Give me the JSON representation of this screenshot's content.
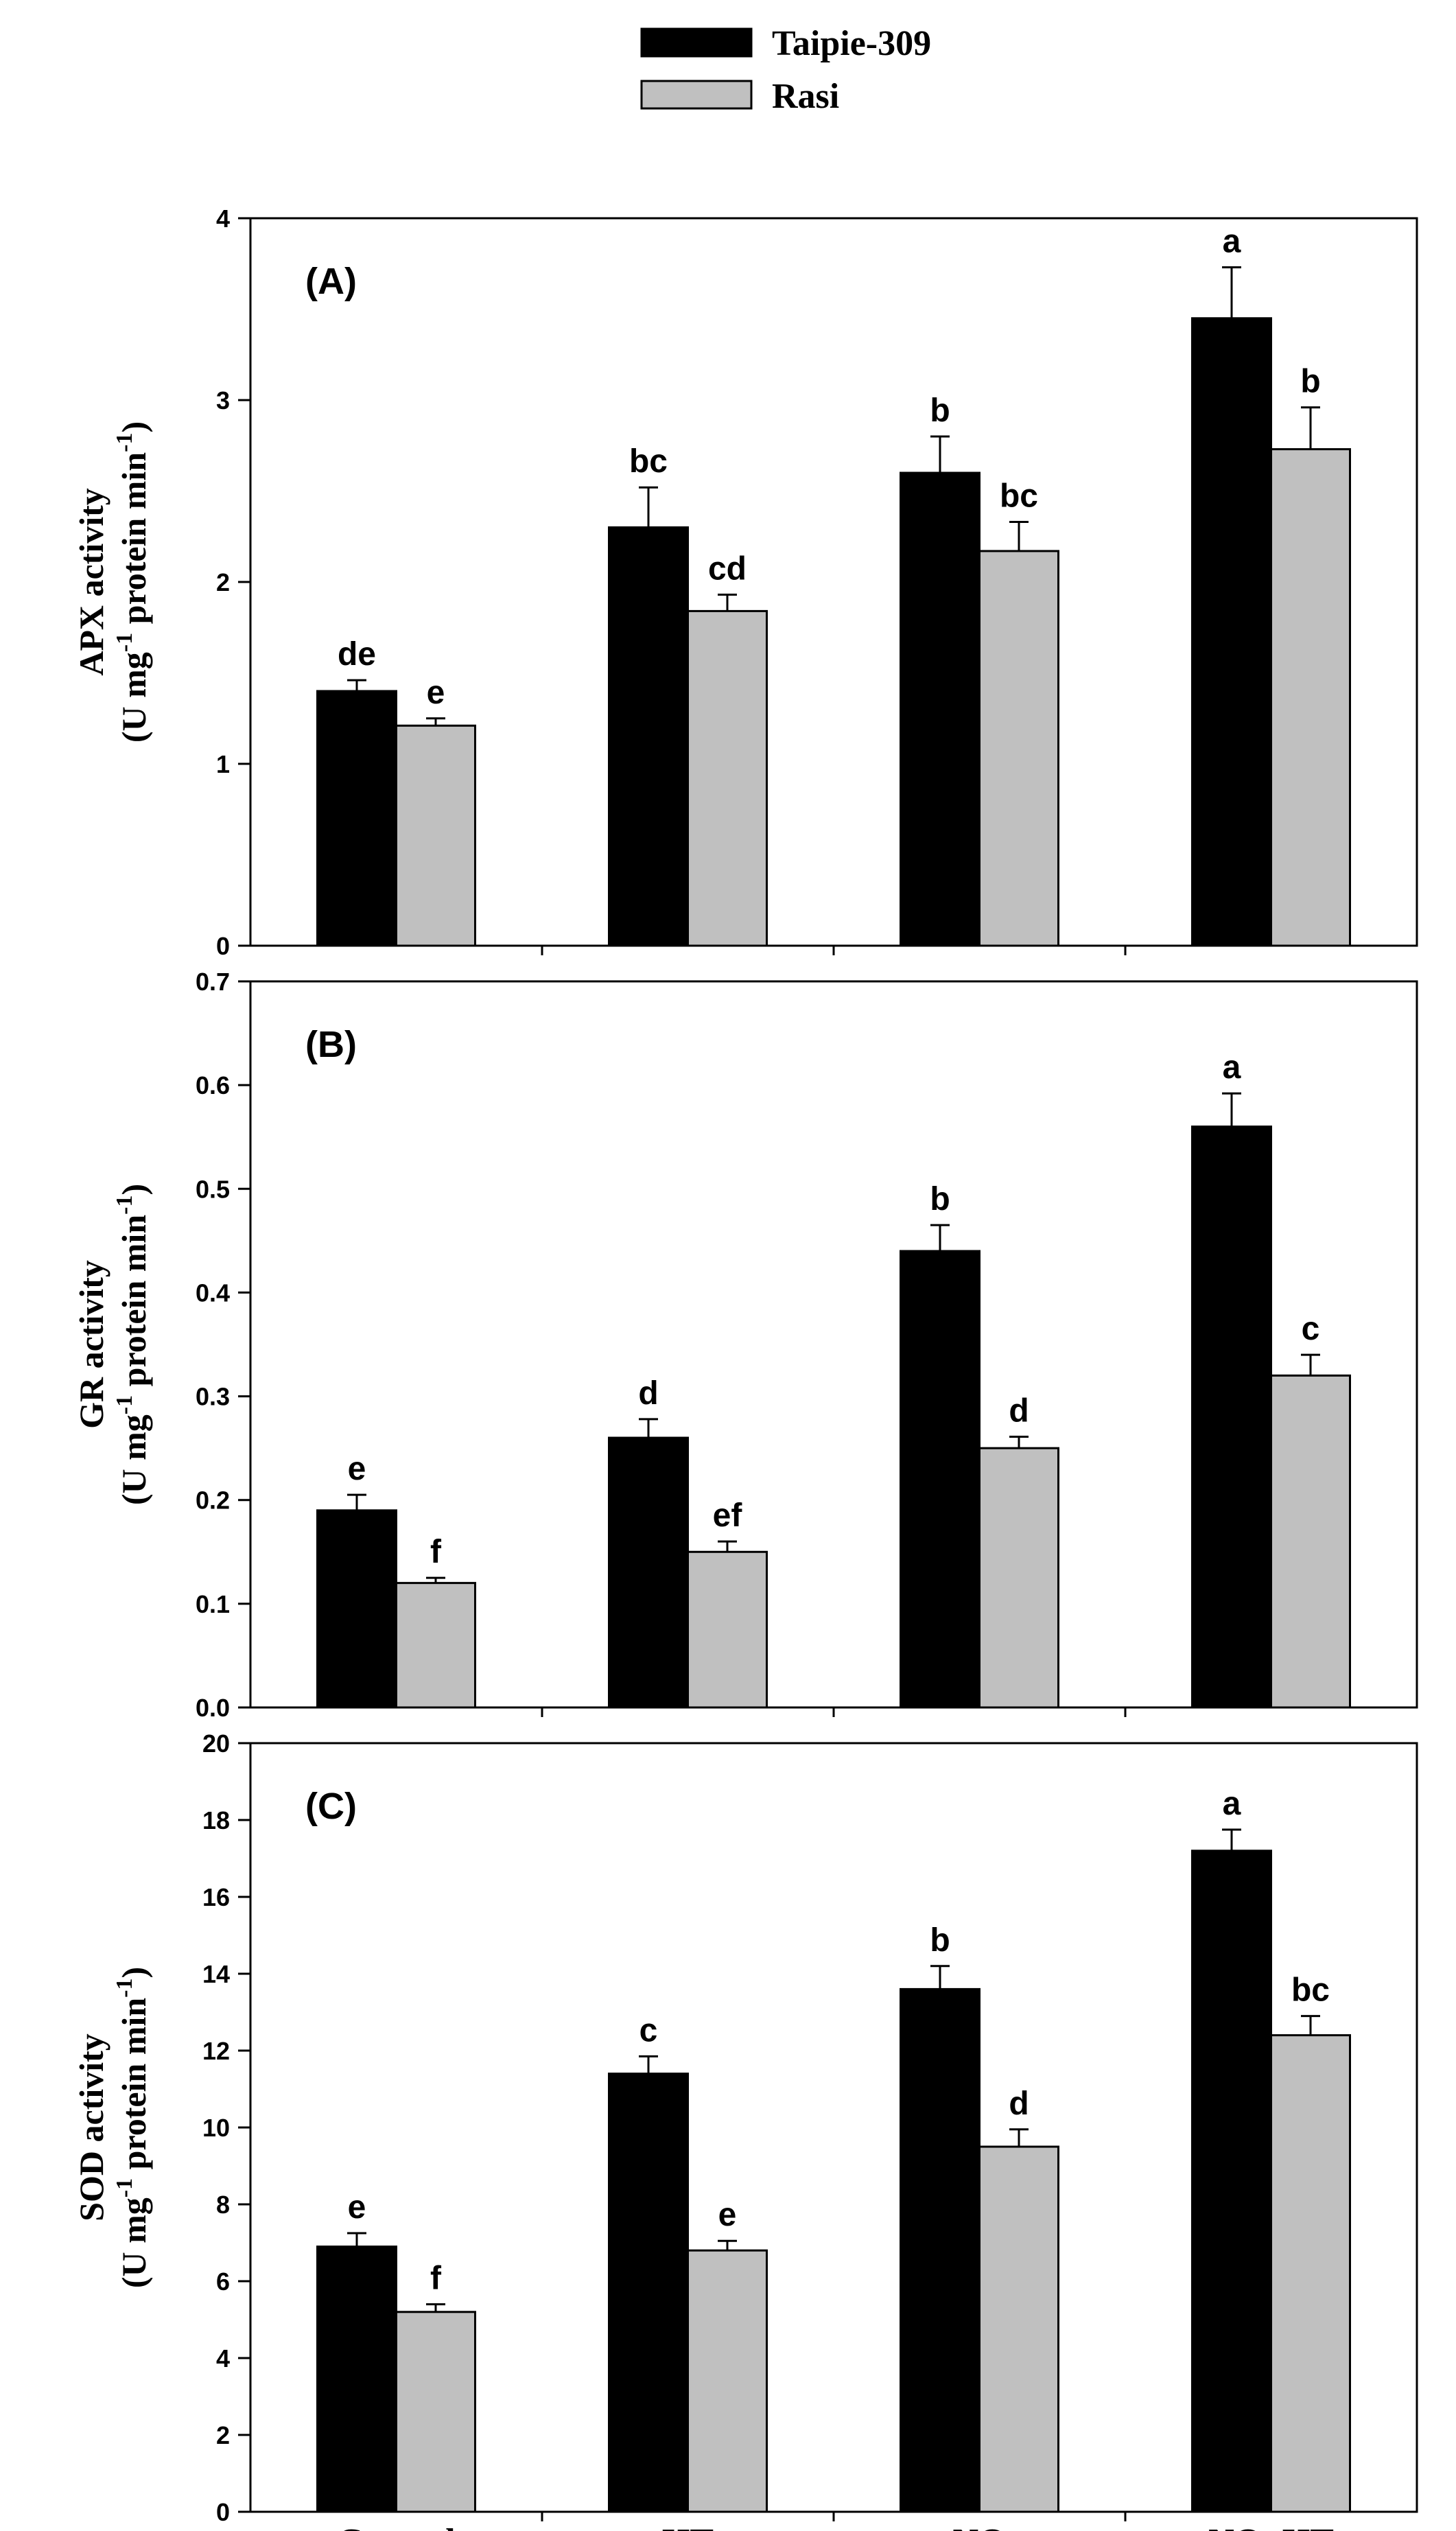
{
  "legend": [
    {
      "name": "Taipie-309",
      "color": "#000000"
    },
    {
      "name": "Rasi",
      "color": "#c0c0c0"
    }
  ],
  "chart_data": [
    {
      "type": "bar",
      "panel": "(A)",
      "ylabel_line1": "APX activity",
      "ylabel_line2_parts": [
        "(U mg",
        "-1",
        " protein min",
        "-1",
        ")"
      ],
      "categories": [
        "Control",
        "HT",
        "NO",
        "NO+HT"
      ],
      "ylim": [
        0,
        4
      ],
      "yticks": [
        "0",
        "1",
        "2",
        "3",
        "4"
      ],
      "show_xlabels": false,
      "series": [
        {
          "name": "Taipie-309",
          "values": [
            1.4,
            2.3,
            2.6,
            3.45
          ],
          "errors": [
            0.06,
            0.22,
            0.2,
            0.28
          ],
          "labels": [
            "de",
            "bc",
            "b",
            "a"
          ]
        },
        {
          "name": "Rasi",
          "values": [
            1.21,
            1.84,
            2.17,
            2.73
          ],
          "errors": [
            0.04,
            0.09,
            0.16,
            0.23
          ],
          "labels": [
            "e",
            "cd",
            "bc",
            "b"
          ]
        }
      ]
    },
    {
      "type": "bar",
      "panel": "(B)",
      "ylabel_line1": "GR activity",
      "ylabel_line2_parts": [
        "(U mg",
        "-1",
        " protein min",
        "-1",
        ")"
      ],
      "categories": [
        "Control",
        "HT",
        "NO",
        "NO+HT"
      ],
      "ylim": [
        0,
        0.7
      ],
      "yticks": [
        "0.0",
        "0.1",
        "0.2",
        "0.3",
        "0.4",
        "0.5",
        "0.6",
        "0.7"
      ],
      "show_xlabels": false,
      "series": [
        {
          "name": "Taipie-309",
          "values": [
            0.19,
            0.26,
            0.44,
            0.56
          ],
          "errors": [
            0.015,
            0.018,
            0.025,
            0.032
          ],
          "labels": [
            "e",
            "d",
            "b",
            "a"
          ]
        },
        {
          "name": "Rasi",
          "values": [
            0.12,
            0.15,
            0.25,
            0.32
          ],
          "errors": [
            0.005,
            0.01,
            0.011,
            0.02
          ],
          "labels": [
            "f",
            "ef",
            "d",
            "c"
          ]
        }
      ]
    },
    {
      "type": "bar",
      "panel": "(C)",
      "ylabel_line1": "SOD activity",
      "ylabel_line2_parts": [
        "(U mg",
        "-1",
        " protein min",
        "-1",
        ")"
      ],
      "categories": [
        "Control",
        "HT",
        "NO",
        "NO+HT"
      ],
      "ylim": [
        0,
        20
      ],
      "yticks": [
        "0",
        "2",
        "4",
        "6",
        "8",
        "10",
        "12",
        "14",
        "16",
        "18",
        "20"
      ],
      "show_xlabels": true,
      "series": [
        {
          "name": "Taipie-309",
          "values": [
            6.9,
            11.4,
            13.6,
            17.2
          ],
          "errors": [
            0.35,
            0.45,
            0.6,
            0.55
          ],
          "labels": [
            "e",
            "c",
            "b",
            "a"
          ]
        },
        {
          "name": "Rasi",
          "values": [
            5.2,
            6.8,
            9.5,
            12.4
          ],
          "errors": [
            0.2,
            0.25,
            0.45,
            0.5
          ],
          "labels": [
            "f",
            "e",
            "d",
            "bc"
          ]
        }
      ]
    }
  ]
}
